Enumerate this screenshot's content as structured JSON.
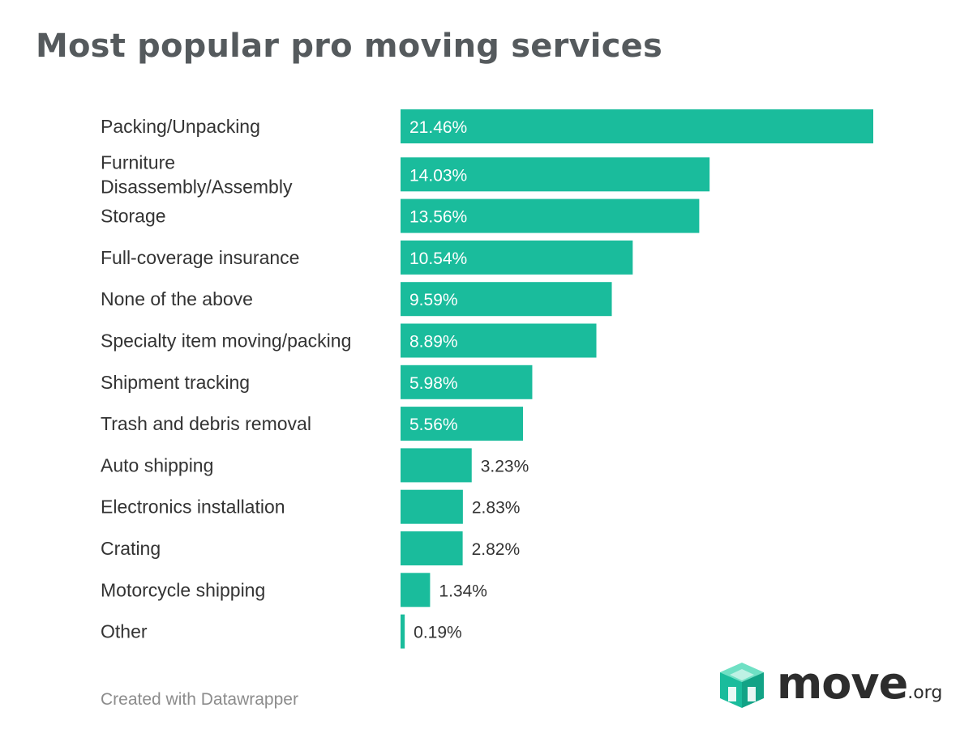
{
  "chart_data": {
    "type": "bar",
    "orientation": "horizontal",
    "title": "Most popular pro moving services",
    "categories": [
      "Packing/Unpacking",
      "Furniture Disassembly/Assembly",
      "Storage",
      "Full-coverage insurance",
      "None of the above",
      "Specialty item moving/packing",
      "Shipment tracking",
      "Trash and debris removal",
      "Auto shipping",
      "Electronics installation",
      "Crating",
      "Motorcycle shipping",
      "Other"
    ],
    "values": [
      21.46,
      14.03,
      13.56,
      10.54,
      9.59,
      8.89,
      5.98,
      5.56,
      3.23,
      2.83,
      2.82,
      1.34,
      0.19
    ],
    "value_labels": [
      "21.46%",
      "14.03%",
      "13.56%",
      "10.54%",
      "9.59%",
      "8.89%",
      "5.98%",
      "5.56%",
      "3.23%",
      "2.83%",
      "2.82%",
      "1.34%",
      "0.19%"
    ],
    "unit": "%",
    "xlim": [
      0,
      21.46
    ],
    "grid": false,
    "legend": "none",
    "bar_color": "#1abc9c"
  },
  "footer": {
    "credit": "Created with Datawrapper",
    "logo_word": "move",
    "logo_tld": ".org",
    "logo_icon": "move-org-cube-icon"
  }
}
